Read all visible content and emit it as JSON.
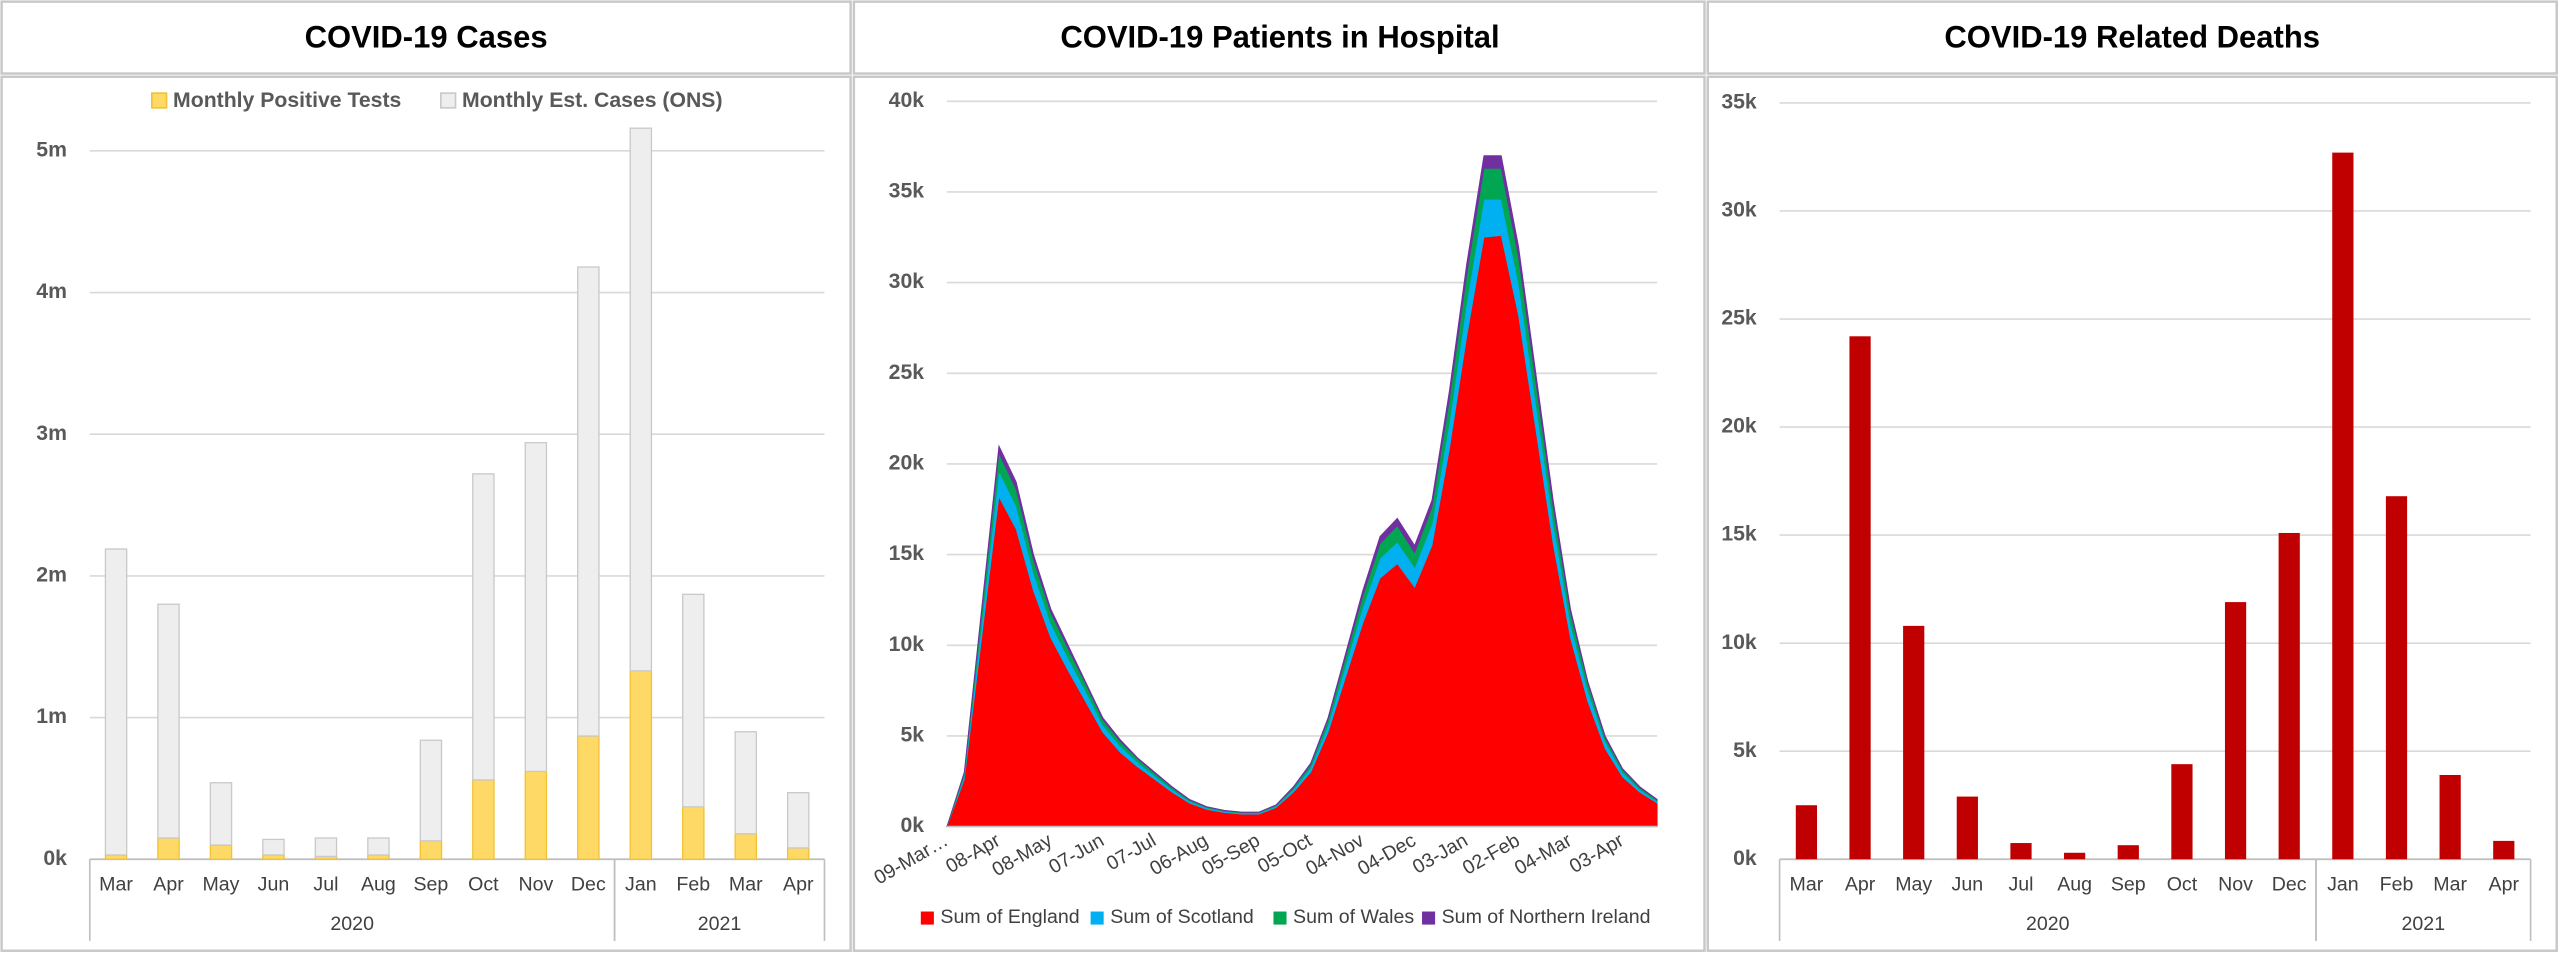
{
  "chart_data": [
    {
      "type": "bar",
      "title": "COVID-19 Cases",
      "stacked": true,
      "categories": [
        "Mar",
        "Apr",
        "May",
        "Jun",
        "Jul",
        "Aug",
        "Sep",
        "Oct",
        "Nov",
        "Dec",
        "Jan",
        "Feb",
        "Mar",
        "Apr"
      ],
      "groups": [
        {
          "label": "2020",
          "first": 0,
          "last": 9
        },
        {
          "label": "2021",
          "first": 10,
          "last": 13
        }
      ],
      "series": [
        {
          "name": "Monthly Positive Tests",
          "color": "#ffd966",
          "values": [
            30000,
            150000,
            100000,
            30000,
            20000,
            30000,
            130000,
            560000,
            620000,
            870000,
            1330000,
            370000,
            180000,
            80000
          ]
        },
        {
          "name": "Monthly Est. Cases (ONS)",
          "color": "#eeeeee",
          "values": [
            2160000,
            1650000,
            440000,
            110000,
            130000,
            120000,
            710000,
            2160000,
            2320000,
            3310000,
            3830000,
            1500000,
            720000,
            390000
          ]
        }
      ],
      "ylim": [
        0,
        5200000
      ],
      "yticks": [
        {
          "value": 0,
          "label": "0k"
        },
        {
          "value": 1000000,
          "label": "1m"
        },
        {
          "value": 2000000,
          "label": "2m"
        },
        {
          "value": 3000000,
          "label": "3m"
        },
        {
          "value": 4000000,
          "label": "4m"
        },
        {
          "value": 5000000,
          "label": "5m"
        }
      ],
      "grid": true,
      "legend": "top"
    },
    {
      "type": "area",
      "title": "COVID-19 Patients in Hospital",
      "stacked": true,
      "categories": [
        "09-Mar…",
        null,
        null,
        "08-Apr",
        null,
        null,
        "08-May",
        null,
        null,
        "07-Jun",
        null,
        null,
        "07-Jul",
        null,
        null,
        "06-Aug",
        null,
        null,
        "05-Sep",
        null,
        null,
        "05-Oct",
        null,
        null,
        "04-Nov",
        null,
        null,
        "04-Dec",
        null,
        null,
        "03-Jan",
        null,
        null,
        "02-Feb",
        null,
        null,
        "04-Mar",
        null,
        null,
        "03-Apr",
        null,
        null
      ],
      "series": [
        {
          "name": "Sum of England",
          "color": "#ff0000",
          "values": [
            0,
            2600,
            10400,
            18200,
            16400,
            13000,
            10400,
            8600,
            6900,
            5200,
            4100,
            3300,
            2600,
            1900,
            1300,
            950,
            780,
            690,
            690,
            1050,
            1900,
            3000,
            5200,
            8200,
            11200,
            13700,
            14500,
            13200,
            15500,
            20800,
            27000,
            32500,
            32600,
            28200,
            21900,
            15600,
            10400,
            6900,
            4300,
            2750,
            1900,
            1300
          ]
        },
        {
          "name": "Sum of Scotland",
          "color": "#00b0f0",
          "values": [
            0,
            200,
            800,
            1400,
            1300,
            1000,
            800,
            700,
            600,
            400,
            350,
            250,
            200,
            150,
            100,
            80,
            60,
            60,
            60,
            80,
            150,
            250,
            400,
            650,
            900,
            1100,
            1200,
            1100,
            1200,
            1500,
            1900,
            2100,
            2000,
            1800,
            1500,
            1200,
            800,
            600,
            400,
            250,
            150,
            100
          ]
        },
        {
          "name": "Sum of Wales",
          "color": "#00a651",
          "values": [
            0,
            150,
            600,
            1000,
            900,
            700,
            600,
            500,
            400,
            300,
            250,
            200,
            150,
            100,
            70,
            50,
            40,
            35,
            35,
            50,
            100,
            180,
            300,
            450,
            600,
            800,
            900,
            800,
            900,
            1200,
            1500,
            1700,
            1700,
            1400,
            1100,
            800,
            600,
            400,
            200,
            150,
            100,
            70
          ]
        },
        {
          "name": "Sum of Northern Ireland",
          "color": "#7030a0",
          "values": [
            0,
            50,
            200,
            400,
            400,
            300,
            200,
            200,
            100,
            100,
            100,
            50,
            50,
            50,
            30,
            20,
            20,
            15,
            15,
            20,
            50,
            70,
            100,
            200,
            300,
            400,
            400,
            400,
            400,
            500,
            600,
            700,
            700,
            600,
            500,
            400,
            200,
            100,
            100,
            50,
            50,
            30
          ]
        }
      ],
      "ylim": [
        0,
        40000
      ],
      "yticks": [
        {
          "value": 0,
          "label": "0k"
        },
        {
          "value": 5000,
          "label": "5k"
        },
        {
          "value": 10000,
          "label": "10k"
        },
        {
          "value": 15000,
          "label": "15k"
        },
        {
          "value": 20000,
          "label": "20k"
        },
        {
          "value": 25000,
          "label": "25k"
        },
        {
          "value": 30000,
          "label": "30k"
        },
        {
          "value": 35000,
          "label": "35k"
        },
        {
          "value": 40000,
          "label": "40k"
        }
      ],
      "grid": true,
      "legend": "bottom"
    },
    {
      "type": "bar",
      "title": "COVID-19 Related Deaths",
      "color": "#c00000",
      "categories": [
        "Mar",
        "Apr",
        "May",
        "Jun",
        "Jul",
        "Aug",
        "Sep",
        "Oct",
        "Nov",
        "Dec",
        "Jan",
        "Feb",
        "Mar",
        "Apr"
      ],
      "groups": [
        {
          "label": "2020",
          "first": 0,
          "last": 9
        },
        {
          "label": "2021",
          "first": 10,
          "last": 13
        }
      ],
      "values": [
        2500,
        24200,
        10800,
        2900,
        750,
        300,
        650,
        4400,
        11900,
        15100,
        32700,
        16800,
        3900,
        850
      ],
      "ylim": [
        0,
        35000
      ],
      "yticks": [
        {
          "value": 0,
          "label": "0k"
        },
        {
          "value": 5000,
          "label": "5k"
        },
        {
          "value": 10000,
          "label": "10k"
        },
        {
          "value": 15000,
          "label": "15k"
        },
        {
          "value": 20000,
          "label": "20k"
        },
        {
          "value": 25000,
          "label": "25k"
        },
        {
          "value": 30000,
          "label": "30k"
        },
        {
          "value": 35000,
          "label": "35k"
        }
      ],
      "grid": true
    }
  ]
}
